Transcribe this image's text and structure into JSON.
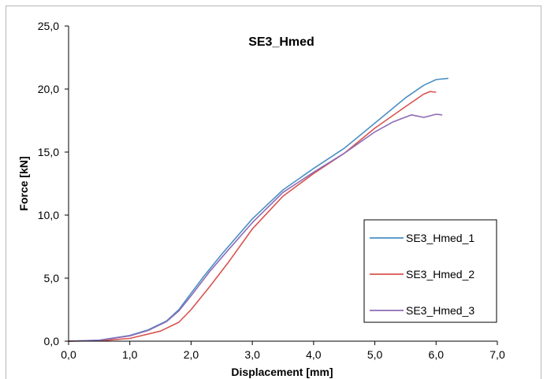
{
  "chart_data": {
    "type": "line",
    "title": "SE3_Hmed",
    "xlabel": "Displacement [mm]",
    "ylabel": "Force [kN]",
    "xlim": [
      0,
      7
    ],
    "ylim": [
      0,
      25
    ],
    "x_ticks": [
      "0,0",
      "1,0",
      "2,0",
      "3,0",
      "4,0",
      "5,0",
      "6,0",
      "7,0"
    ],
    "y_ticks": [
      "0,0",
      "5,0",
      "10,0",
      "15,0",
      "20,0",
      "25,0"
    ],
    "grid": false,
    "legend_position": "right",
    "series": [
      {
        "name": "SE3_Hmed_1",
        "color": "#4a90c4",
        "points": [
          [
            0,
            0
          ],
          [
            0.5,
            0.08
          ],
          [
            1.0,
            0.45
          ],
          [
            1.3,
            0.9
          ],
          [
            1.6,
            1.6
          ],
          [
            1.8,
            2.5
          ],
          [
            2.0,
            3.8
          ],
          [
            2.2,
            5.1
          ],
          [
            2.5,
            6.9
          ],
          [
            3.0,
            9.7
          ],
          [
            3.5,
            12.0
          ],
          [
            4.0,
            13.7
          ],
          [
            4.5,
            15.3
          ],
          [
            5.0,
            17.3
          ],
          [
            5.5,
            19.3
          ],
          [
            5.8,
            20.3
          ],
          [
            6.0,
            20.75
          ],
          [
            6.2,
            20.85
          ]
        ]
      },
      {
        "name": "SE3_Hmed_2",
        "color": "#d9534f",
        "points": [
          [
            0,
            0
          ],
          [
            0.5,
            0.03
          ],
          [
            1.0,
            0.22
          ],
          [
            1.5,
            0.8
          ],
          [
            1.8,
            1.5
          ],
          [
            2.0,
            2.5
          ],
          [
            2.3,
            4.3
          ],
          [
            2.6,
            6.2
          ],
          [
            3.0,
            8.9
          ],
          [
            3.5,
            11.5
          ],
          [
            4.0,
            13.3
          ],
          [
            4.5,
            14.9
          ],
          [
            5.0,
            16.9
          ],
          [
            5.5,
            18.6
          ],
          [
            5.8,
            19.6
          ],
          [
            5.9,
            19.8
          ],
          [
            6.0,
            19.75
          ]
        ]
      },
      {
        "name": "SE3_Hmed_3",
        "color": "#8e6bb5",
        "points": [
          [
            0,
            0
          ],
          [
            0.5,
            0.07
          ],
          [
            1.0,
            0.42
          ],
          [
            1.3,
            0.85
          ],
          [
            1.6,
            1.55
          ],
          [
            1.8,
            2.4
          ],
          [
            2.0,
            3.6
          ],
          [
            2.3,
            5.5
          ],
          [
            2.6,
            7.2
          ],
          [
            3.0,
            9.4
          ],
          [
            3.5,
            11.8
          ],
          [
            4.0,
            13.4
          ],
          [
            4.5,
            14.9
          ],
          [
            5.0,
            16.6
          ],
          [
            5.3,
            17.4
          ],
          [
            5.6,
            17.95
          ],
          [
            5.8,
            17.75
          ],
          [
            6.0,
            18.0
          ],
          [
            6.1,
            17.95
          ]
        ]
      }
    ]
  }
}
